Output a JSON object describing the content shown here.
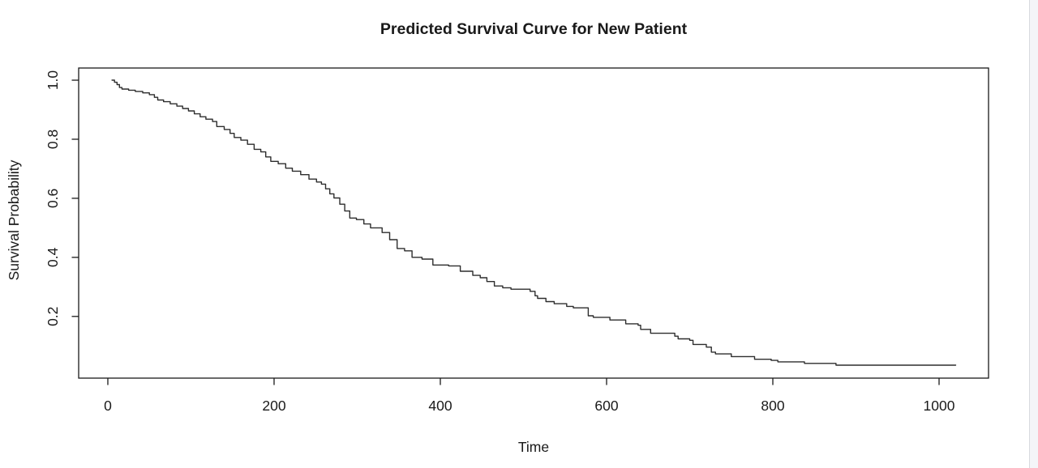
{
  "page": {
    "background": "#ffffff",
    "gutter_color": "#f4f5f8",
    "gutter_border_color": "#d8dadf"
  },
  "chart_data": {
    "type": "line",
    "subtype": "step-survival",
    "title": "Predicted Survival Curve for New Patient",
    "xlabel": "Time",
    "ylabel": "Survival Probability",
    "x_ticks": [
      0,
      200,
      400,
      600,
      800,
      1000
    ],
    "y_ticks": [
      0.2,
      0.4,
      0.6,
      0.8,
      1.0
    ],
    "xlim": [
      -35.1,
      1059.5
    ],
    "ylim": [
      -0.009,
      1.0412
    ],
    "grid": false,
    "legend": "none",
    "box": true,
    "line_color": "#2d2d2d",
    "axis_color": "#1a1a1a",
    "series": [
      {
        "name": "predicted-survival",
        "points": [
          [
            5,
            1.0
          ],
          [
            8,
            0.993
          ],
          [
            11,
            0.985
          ],
          [
            14,
            0.975
          ],
          [
            17,
            0.97
          ],
          [
            25,
            0.966
          ],
          [
            33,
            0.962
          ],
          [
            42,
            0.957
          ],
          [
            50,
            0.951
          ],
          [
            56,
            0.942
          ],
          [
            60,
            0.933
          ],
          [
            67,
            0.927
          ],
          [
            75,
            0.92
          ],
          [
            83,
            0.912
          ],
          [
            90,
            0.904
          ],
          [
            97,
            0.896
          ],
          [
            104,
            0.886
          ],
          [
            111,
            0.876
          ],
          [
            118,
            0.868
          ],
          [
            126,
            0.86
          ],
          [
            131,
            0.843
          ],
          [
            140,
            0.833
          ],
          [
            147,
            0.82
          ],
          [
            152,
            0.806
          ],
          [
            160,
            0.797
          ],
          [
            168,
            0.783
          ],
          [
            176,
            0.766
          ],
          [
            184,
            0.757
          ],
          [
            190,
            0.74
          ],
          [
            196,
            0.725
          ],
          [
            205,
            0.717
          ],
          [
            214,
            0.702
          ],
          [
            222,
            0.692
          ],
          [
            232,
            0.68
          ],
          [
            242,
            0.665
          ],
          [
            251,
            0.655
          ],
          [
            257,
            0.648
          ],
          [
            262,
            0.632
          ],
          [
            267,
            0.615
          ],
          [
            272,
            0.601
          ],
          [
            279,
            0.58
          ],
          [
            285,
            0.557
          ],
          [
            291,
            0.533
          ],
          [
            299,
            0.528
          ],
          [
            308,
            0.513
          ],
          [
            316,
            0.5
          ],
          [
            330,
            0.484
          ],
          [
            339,
            0.46
          ],
          [
            348,
            0.43
          ],
          [
            357,
            0.422
          ],
          [
            366,
            0.4
          ],
          [
            378,
            0.394
          ],
          [
            391,
            0.374
          ],
          [
            410,
            0.371
          ],
          [
            424,
            0.353
          ],
          [
            439,
            0.339
          ],
          [
            448,
            0.331
          ],
          [
            456,
            0.318
          ],
          [
            465,
            0.303
          ],
          [
            475,
            0.297
          ],
          [
            485,
            0.292
          ],
          [
            508,
            0.285
          ],
          [
            514,
            0.27
          ],
          [
            517,
            0.261
          ],
          [
            527,
            0.25
          ],
          [
            537,
            0.243
          ],
          [
            552,
            0.234
          ],
          [
            560,
            0.229
          ],
          [
            578,
            0.202
          ],
          [
            584,
            0.197
          ],
          [
            604,
            0.188
          ],
          [
            623,
            0.175
          ],
          [
            638,
            0.17
          ],
          [
            641,
            0.156
          ],
          [
            653,
            0.143
          ],
          [
            682,
            0.133
          ],
          [
            686,
            0.124
          ],
          [
            700,
            0.119
          ],
          [
            704,
            0.105
          ],
          [
            720,
            0.096
          ],
          [
            726,
            0.079
          ],
          [
            731,
            0.073
          ],
          [
            750,
            0.064
          ],
          [
            778,
            0.055
          ],
          [
            798,
            0.051
          ],
          [
            806,
            0.046
          ],
          [
            838,
            0.041
          ],
          [
            876,
            0.035
          ],
          [
            1020,
            0.035
          ]
        ]
      }
    ]
  }
}
